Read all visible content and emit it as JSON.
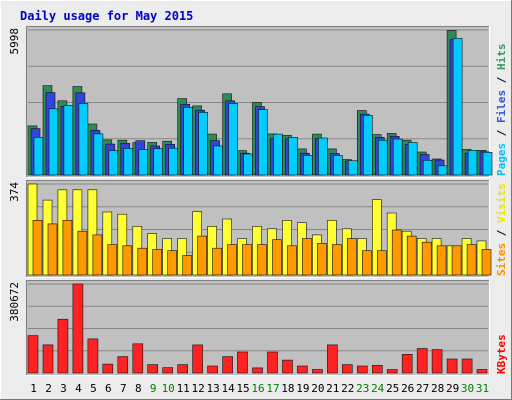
{
  "chart_data": {
    "type": "bar",
    "title": "Daily usage for May 2015",
    "title_color": "#0000cc",
    "days": [
      "1",
      "2",
      "3",
      "4",
      "5",
      "6",
      "7",
      "8",
      "9",
      "10",
      "11",
      "12",
      "13",
      "14",
      "15",
      "16",
      "17",
      "18",
      "19",
      "20",
      "21",
      "22",
      "23",
      "24",
      "25",
      "26",
      "27",
      "28",
      "29",
      "30",
      "31"
    ],
    "weekend_days": [
      "9",
      "10",
      "16",
      "17",
      "23",
      "24",
      "30",
      "31"
    ],
    "weekday_color": "#000000",
    "weekend_color": "#008000",
    "panels": [
      {
        "id": "hits-files-pages",
        "ymax_label": "5998",
        "ymax": 5998,
        "legend": [
          {
            "text": "Pages",
            "color": "#00bfff"
          },
          {
            "text": " / ",
            "color": "#000000"
          },
          {
            "text": "Files",
            "color": "#3355dd"
          },
          {
            "text": " / ",
            "color": "#000000"
          },
          {
            "text": "Hits",
            "color": "#339966"
          }
        ],
        "series": [
          {
            "name": "Hits",
            "color": "#2e8b57",
            "values": [
              2030,
              3700,
              3070,
              3660,
              2110,
              1450,
              1440,
              1340,
              1350,
              1400,
              3160,
              2860,
              1690,
              3360,
              1010,
              3000,
              1700,
              1640,
              1080,
              1690,
              1080,
              640,
              2670,
              1670,
              1720,
              1440,
              950,
              660,
              5980,
              1060,
              1020
            ]
          },
          {
            "name": "Files",
            "color": "#3344dd",
            "values": [
              1920,
              3410,
              2840,
              3400,
              1850,
              1280,
              1310,
              1420,
              1200,
              1270,
              2920,
              2680,
              1420,
              3070,
              900,
              2830,
              1510,
              1500,
              900,
              1510,
              890,
              580,
              2520,
              1560,
              1600,
              1270,
              850,
              620,
              5600,
              900,
              960
            ]
          },
          {
            "name": "Pages",
            "color": "#00ccff",
            "values": [
              1560,
              2740,
              2880,
              2960,
              1700,
              1010,
              1100,
              1050,
              1090,
              1110,
              2800,
              2590,
              1200,
              2960,
              870,
              2700,
              1690,
              1560,
              810,
              1530,
              810,
              590,
              2470,
              1440,
              1490,
              1350,
              610,
              380,
              5650,
              1020,
              940
            ]
          }
        ]
      },
      {
        "id": "visits-sites",
        "ymax_label": "374",
        "ymax": 374,
        "legend": [
          {
            "text": "Sites",
            "color": "#ff8c00"
          },
          {
            "text": " / ",
            "color": "#000000"
          },
          {
            "text": "Visits",
            "color": "#e8e800"
          }
        ],
        "series": [
          {
            "name": "Visits",
            "color": "#ffff33",
            "values": [
              374,
              308,
              350,
              350,
              350,
              259,
              250,
              200,
              170,
              150,
              150,
              260,
              200,
              230,
              150,
              200,
              190,
              225,
              215,
              165,
              225,
              190,
              150,
              310,
              255,
              180,
              150,
              150,
              120,
              150,
              140
            ]
          },
          {
            "name": "Sites",
            "color": "#ff9900",
            "values": [
              225,
              210,
              225,
              180,
              165,
              125,
              120,
              110,
              105,
              100,
              80,
              160,
              110,
              125,
              125,
              125,
              145,
              120,
              150,
              130,
              125,
              150,
              100,
              100,
              185,
              160,
              135,
              120,
              120,
              125,
              105
            ]
          }
        ]
      },
      {
        "id": "kbytes",
        "ymax_label": "380672",
        "ymax": 380672,
        "legend": [
          {
            "text": "KBytes",
            "color": "#ff0000"
          }
        ],
        "series": [
          {
            "name": "KBytes",
            "color": "#ff2222",
            "values": [
              160000,
              120000,
              230000,
              380672,
              146000,
              38000,
              70000,
              125000,
              36000,
              23000,
              36000,
              120000,
              30000,
              70000,
              90000,
              22000,
              90000,
              55000,
              30000,
              15000,
              120000,
              36000,
              30000,
              33000,
              15000,
              80000,
              105000,
              100000,
              60000,
              60000,
              15000
            ]
          }
        ]
      }
    ]
  }
}
